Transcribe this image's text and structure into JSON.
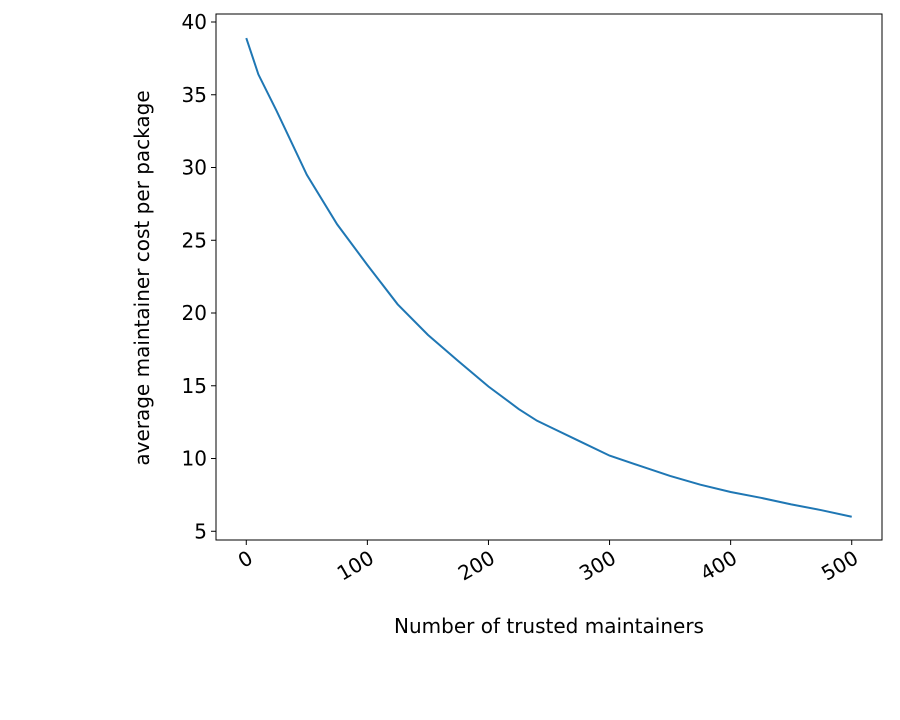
{
  "chart_data": {
    "type": "line",
    "x_label": "Number of trusted maintainers",
    "y_label": "average maintainer cost per package",
    "x": [
      0,
      10,
      25,
      50,
      75,
      100,
      125,
      150,
      175,
      200,
      225,
      240,
      250,
      275,
      300,
      325,
      350,
      375,
      400,
      425,
      450,
      475,
      500
    ],
    "series": [
      {
        "color": "#1f77b4",
        "values": [
          38.9,
          36.4,
          33.9,
          29.5,
          26.1,
          23.3,
          20.6,
          18.5,
          16.7,
          14.95,
          13.4,
          12.6,
          12.2,
          11.2,
          10.2,
          9.5,
          8.8,
          8.2,
          7.7,
          7.3,
          6.85,
          6.45,
          6.0
        ]
      }
    ],
    "xlim": [
      -25,
      525
    ],
    "ylim": [
      4.4,
      40.55
    ],
    "xticks": [
      0,
      100,
      200,
      300,
      400,
      500
    ],
    "yticks": [
      5,
      10,
      15,
      20,
      25,
      30,
      35,
      40
    ]
  }
}
